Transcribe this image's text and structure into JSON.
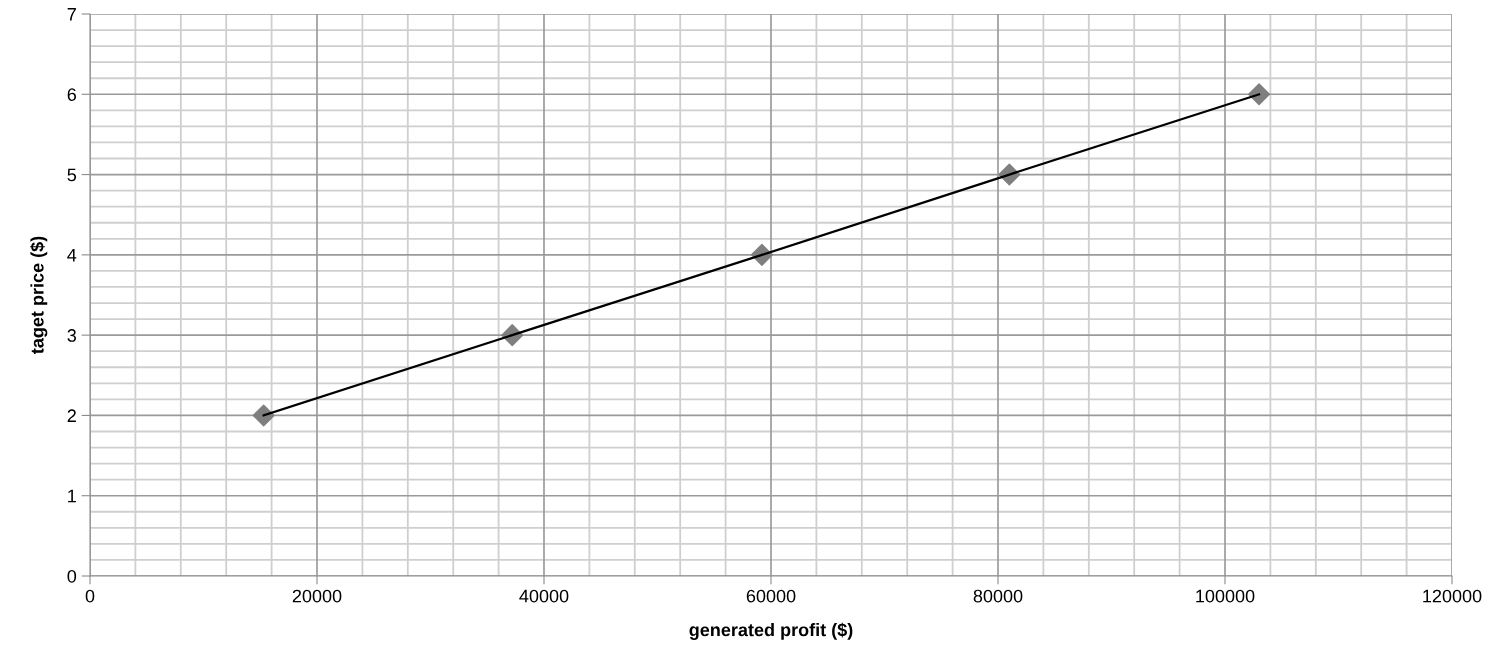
{
  "chart_data": {
    "type": "scatter",
    "xlabel": "generated profit ($)",
    "ylabel": "taget price ($)",
    "x": [
      15300,
      37200,
      59200,
      81000,
      103000
    ],
    "series": [
      {
        "type": "line",
        "color": "#000000",
        "marker": "none",
        "line_style": "solid",
        "values": [
          2,
          3,
          4,
          5,
          6
        ]
      },
      {
        "color": "#7f7f7f",
        "marker": "diamond",
        "values": [
          2,
          3,
          4,
          5,
          6
        ]
      }
    ],
    "xlim": [
      0,
      120000
    ],
    "xticks": [
      0,
      20000,
      40000,
      60000,
      80000,
      100000,
      120000
    ],
    "ylim": [
      0,
      7
    ],
    "yticks": [
      0,
      1,
      2,
      3,
      4,
      5,
      6,
      7
    ],
    "grid": true
  }
}
